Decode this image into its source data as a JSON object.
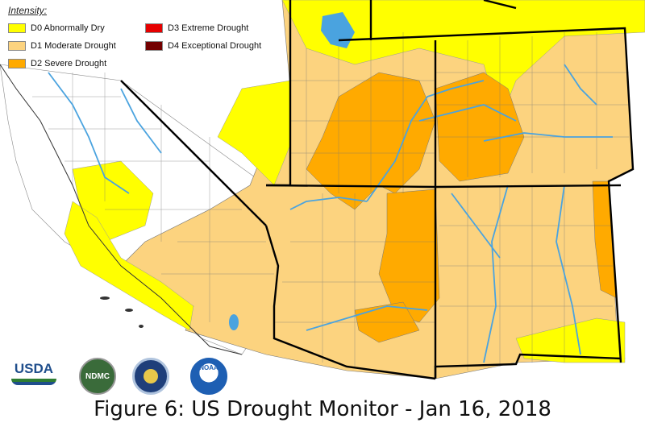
{
  "legend": {
    "title": "Intensity:",
    "items": [
      {
        "label": "D0 Abnormally Dry",
        "color": "#ffff00"
      },
      {
        "label": "D1 Moderate Drought",
        "color": "#fcd37f"
      },
      {
        "label": "D2 Severe Drought",
        "color": "#ffaa00"
      },
      {
        "label": "D3 Extreme Drought",
        "color": "#e60000"
      },
      {
        "label": "D4 Exceptional Drought",
        "color": "#730000"
      }
    ]
  },
  "logos": {
    "usda": "USDA",
    "ndmc": "NDMC",
    "noaa": "NOAA",
    "doc_icon": "department-of-commerce-seal-icon"
  },
  "caption": "Figure 6: US Drought Monitor - Jan 16, 2018",
  "colors": {
    "water": "#4aa3df",
    "border": "#000000",
    "county": "#555555"
  }
}
